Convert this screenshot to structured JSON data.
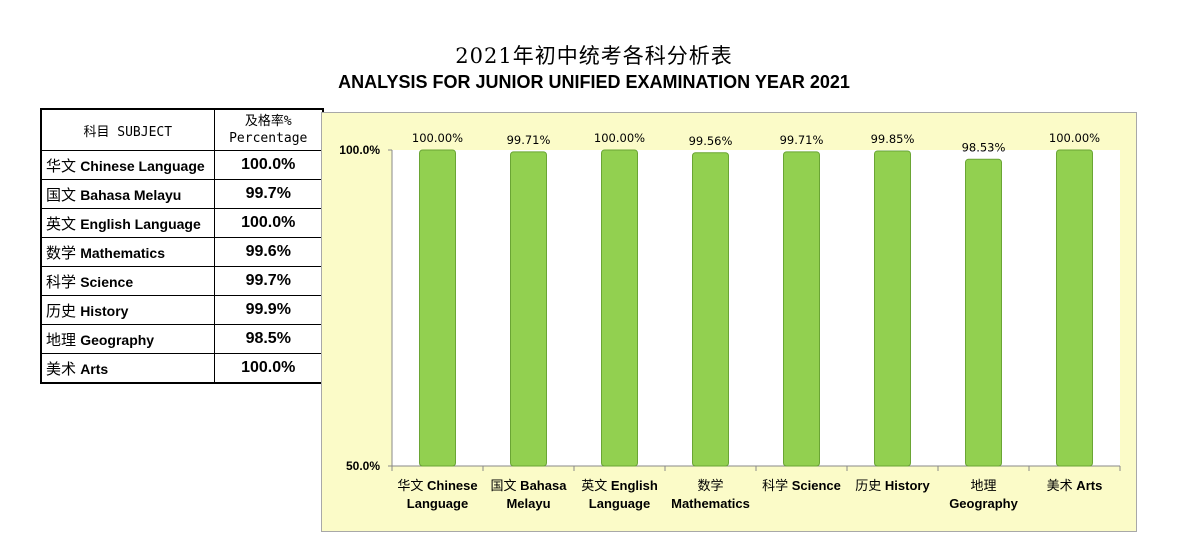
{
  "header": {
    "title_cn": "2021年初中统考各科分析表",
    "title_en": "ANALYSIS FOR JUNIOR UNIFIED EXAMINATION YEAR 2021"
  },
  "table": {
    "header_subject": "科目 SUBJECT",
    "header_pct_line1": "及格率%",
    "header_pct_line2": "Percentage",
    "rows": [
      {
        "cn": "华文",
        "en": "Chinese Language",
        "pct": "100.0%"
      },
      {
        "cn": "国文",
        "en": "Bahasa Melayu",
        "pct": "99.7%"
      },
      {
        "cn": "英文",
        "en": "English Language",
        "pct": "100.0%"
      },
      {
        "cn": "数学",
        "en": "Mathematics",
        "pct": "99.6%"
      },
      {
        "cn": "科学",
        "en": "Science",
        "pct": "99.7%"
      },
      {
        "cn": "历史",
        "en": "History",
        "pct": "99.9%"
      },
      {
        "cn": "地理",
        "en": "Geography",
        "pct": "98.5%"
      },
      {
        "cn": "美术",
        "en": "Arts",
        "pct": "100.0%"
      }
    ]
  },
  "colors": {
    "bar": "#92d050",
    "bar_edge": "#6aa534",
    "plot_bg": "#ffffff",
    "chart_bg": "#fbfbc8"
  },
  "chart_data": {
    "type": "bar",
    "title": "",
    "xlabel": "",
    "ylabel": "",
    "ylim": [
      50,
      100
    ],
    "y_ticks": [
      "50.0%",
      "100.0%"
    ],
    "grid": false,
    "categories": [
      {
        "cn": "华文",
        "line1": "Chinese",
        "line2": "Language"
      },
      {
        "cn": "国文",
        "line1": "Bahasa",
        "line2": "Melayu"
      },
      {
        "cn": "英文",
        "line1": "English",
        "line2": "Language"
      },
      {
        "cn": "数学",
        "line1": "",
        "line2": "Mathematics"
      },
      {
        "cn": "科学",
        "line1": "Science",
        "line2": ""
      },
      {
        "cn": "历史",
        "line1": "History",
        "line2": ""
      },
      {
        "cn": "地理",
        "line1": "",
        "line2": "Geography"
      },
      {
        "cn": "美术",
        "line1": "Arts",
        "line2": ""
      }
    ],
    "values": [
      100.0,
      99.71,
      100.0,
      99.56,
      99.71,
      99.85,
      98.53,
      100.0
    ],
    "data_labels": [
      "100.00%",
      "99.71%",
      "100.00%",
      "99.56%",
      "99.71%",
      "99.85%",
      "98.53%",
      "100.00%"
    ]
  }
}
